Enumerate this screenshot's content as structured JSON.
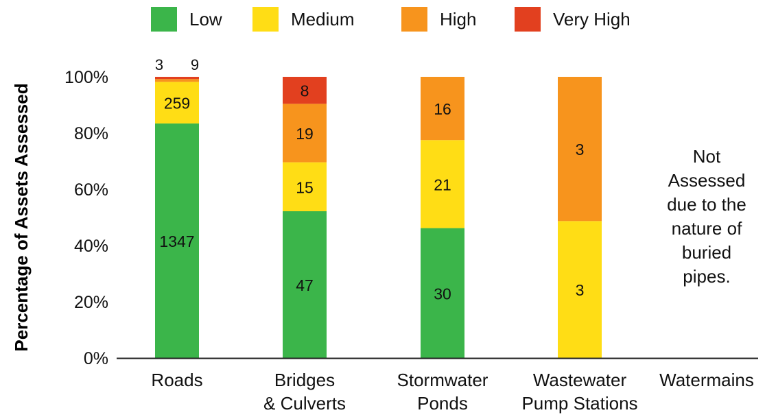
{
  "chart_data": {
    "type": "bar",
    "stacked": true,
    "title": "",
    "xlabel": "",
    "ylabel": "Percentage of Assets Assessed",
    "ylim": [
      0,
      100
    ],
    "yticks": [
      "0%",
      "20%",
      "40%",
      "60%",
      "80%",
      "100%"
    ],
    "categories": [
      [
        "Roads"
      ],
      [
        "Bridges",
        "& Culverts"
      ],
      [
        "Stormwater",
        "Ponds"
      ],
      [
        "Wastewater",
        "Pump Stations"
      ],
      [
        "Watermains"
      ]
    ],
    "series": [
      {
        "name": "Low",
        "color": "#3bb54a",
        "percent": [
          83.4,
          52.2,
          46.2,
          0,
          null
        ],
        "counts": [
          "1347",
          "47",
          "30",
          "",
          ""
        ]
      },
      {
        "name": "Medium",
        "color": "#ffdd15",
        "percent": [
          14.8,
          17.4,
          31.3,
          48.7,
          null
        ],
        "counts": [
          "259",
          "15",
          "21",
          "3",
          ""
        ]
      },
      {
        "name": "High",
        "color": "#f7941d",
        "percent": [
          1.0,
          20.8,
          22.5,
          51.3,
          null
        ],
        "counts": [
          "9",
          "19",
          "16",
          "3",
          ""
        ]
      },
      {
        "name": "Very High",
        "color": "#e2401f",
        "percent": [
          0.8,
          9.6,
          0,
          0,
          null
        ],
        "counts": [
          "3",
          "8",
          "",
          "",
          ""
        ]
      }
    ],
    "above_bar_labels": [
      [
        "3",
        "9"
      ],
      [],
      [],
      [],
      []
    ],
    "annotation": {
      "category": "Watermains",
      "lines": [
        "Not",
        "Assessed",
        "due to the",
        "nature of",
        "buried",
        "pipes."
      ]
    },
    "legend_position": "top",
    "grid": false
  }
}
